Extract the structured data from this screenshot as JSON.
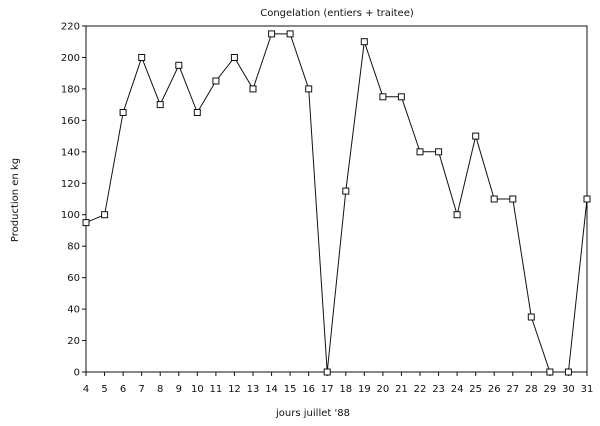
{
  "chart_data": {
    "type": "line",
    "title": "Congelation (entiers + traitee)",
    "xlabel": "jours juillet '88",
    "ylabel": "Production en kg",
    "x": [
      4,
      5,
      6,
      7,
      8,
      9,
      10,
      11,
      12,
      13,
      14,
      15,
      16,
      17,
      18,
      19,
      20,
      21,
      22,
      23,
      24,
      25,
      26,
      27,
      28,
      29,
      30,
      31
    ],
    "series": [
      {
        "values": [
          95,
          100,
          165,
          200,
          170,
          195,
          165,
          185,
          200,
          180,
          215,
          215,
          180,
          0,
          115,
          210,
          175,
          175,
          140,
          140,
          100,
          150,
          110,
          110,
          35,
          0,
          0,
          110
        ],
        "marker": "square"
      }
    ],
    "xlim": [
      4,
      31
    ],
    "ylim": [
      0,
      220
    ],
    "yticks": [
      0,
      20,
      40,
      60,
      80,
      100,
      120,
      140,
      160,
      180,
      200,
      220
    ],
    "xticks": [
      4,
      5,
      6,
      7,
      8,
      9,
      10,
      11,
      12,
      13,
      14,
      15,
      16,
      17,
      18,
      19,
      20,
      21,
      22,
      23,
      24,
      25,
      26,
      27,
      28,
      29,
      30,
      31
    ],
    "grid": false,
    "legend": "none",
    "colors": {
      "line": "#111111",
      "axis": "#111111",
      "background": "#ffffff"
    }
  }
}
